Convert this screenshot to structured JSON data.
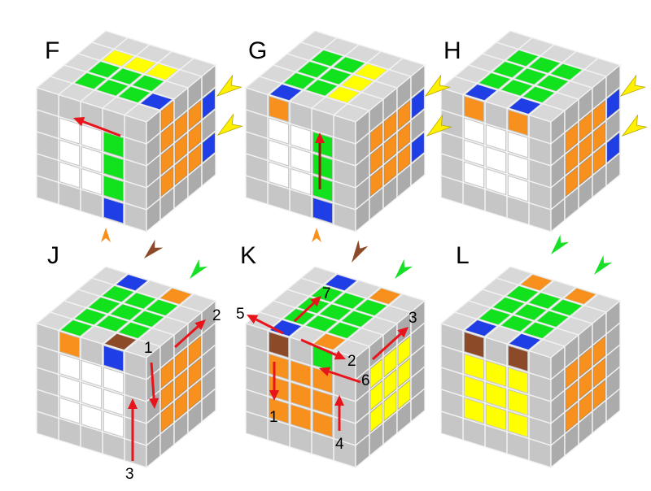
{
  "colors": {
    "g": "#cfcfcf",
    "G": "#12e21e",
    "Y": "#ffff00",
    "O": "#f7901c",
    "B": "#1f3ee6",
    "W": "#ffffff",
    "N": "#8c4a28",
    "arrow_red": "#e8141c",
    "marker_yellow": "#fff000",
    "marker_orange": "#f7901c",
    "marker_brown": "#8c4a28",
    "marker_green": "#18e028"
  },
  "cubes": [
    {
      "label": "F",
      "top": [
        "gBggg",
        "gGGYg",
        "gGGYg",
        "gGGYg",
        "ggggg"
      ],
      "front": [
        "ggggg",
        "gGGGB",
        "gWWWg",
        "gWWWg",
        "ggggg"
      ],
      "right": [
        "ggggg",
        "OOOOg",
        "gOOOg",
        "gOOOg",
        "gBgBg"
      ]
    },
    {
      "label": "G",
      "top": [
        "ggggg",
        "gYYYg",
        "gGGGg",
        "BGGGg",
        "ggggg"
      ],
      "front": [
        "ggggg",
        "gGGGB",
        "gWWWg",
        "OWWWg",
        "ggggg"
      ],
      "right": [
        "ggggg",
        "gOOOg",
        "gOOOg",
        "gOOOg",
        "gBgBg"
      ]
    },
    {
      "label": "H",
      "top": [
        "ggggg",
        "BGGGg",
        "gGGGg",
        "BGGGg",
        "ggggg"
      ],
      "front": [
        "ggggg",
        "OWWWg",
        "gWWWg",
        "OWWWg",
        "ggggg"
      ],
      "right": [
        "ggggg",
        "gOOOg",
        "gOOOg",
        "gOOOg",
        "gBgBg"
      ]
    },
    {
      "label": "J",
      "top": [
        "ggggg",
        "NGGGO",
        "gGGGg",
        "GGGGB",
        "ggggg"
      ],
      "front": [
        "ggggg",
        "BWWWg",
        "gWWWg",
        "OWWWg",
        "ggggg"
      ],
      "right": [
        "ggggg",
        "gOOOg",
        "gOOOg",
        "gOOOg",
        "ggggg"
      ],
      "step_labels": [
        "1",
        "2",
        "3"
      ]
    },
    {
      "label": "K",
      "top": [
        "ggggg",
        "OGGGO",
        "gGGGg",
        "BGGGB",
        "ggggg"
      ],
      "front": [
        "ggggg",
        "GOOOg",
        "gOOOg",
        "NOOOg",
        "ggggg"
      ],
      "right": [
        "ggggg",
        "gYYYg",
        "gYYYg",
        "gYYYg",
        "ggggg"
      ],
      "step_labels": [
        "1",
        "2",
        "3",
        "4",
        "5",
        "6",
        "7"
      ]
    },
    {
      "label": "L",
      "top": [
        "ggggg",
        "BGGGO",
        "gGGGg",
        "BGGGO",
        "ggggg"
      ],
      "front": [
        "ggggg",
        "NYYYg",
        "gYYYg",
        "NYYYg",
        "ggggg"
      ],
      "right": [
        "ggggg",
        "gOOOg",
        "gOOOg",
        "gOOOg",
        "ggggg"
      ]
    }
  ]
}
